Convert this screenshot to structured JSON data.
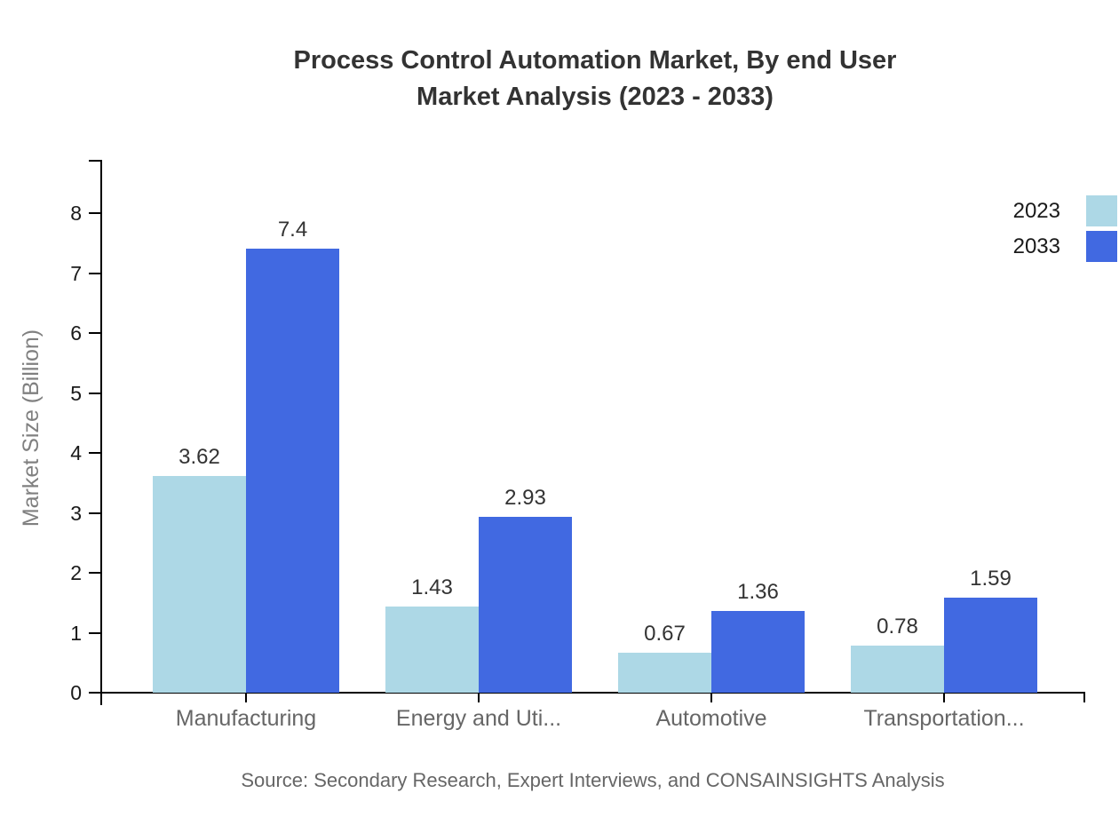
{
  "chart_data": {
    "type": "bar",
    "title": "Process Control Automation Market, By end User Market Analysis (2023 - 2033)",
    "title_lines": [
      "Process Control Automation Market, By end User",
      "Market Analysis (2023 - 2033)"
    ],
    "ylabel": "Market Size (Billion)",
    "xlabel": "",
    "categories": [
      "Manufacturing",
      "Energy and Uti...",
      "Automotive",
      "Transportation..."
    ],
    "series": [
      {
        "name": "2023",
        "color": "#ADD8E6",
        "values": [
          3.62,
          1.43,
          0.67,
          0.78
        ],
        "labels": [
          "3.62",
          "1.43",
          "0.67",
          "0.78"
        ]
      },
      {
        "name": "2033",
        "color": "#4169E1",
        "values": [
          7.4,
          2.93,
          1.36,
          1.59
        ],
        "labels": [
          "7.4",
          "2.93",
          "1.36",
          "1.59"
        ]
      }
    ],
    "yticks": [
      0,
      1,
      2,
      3,
      4,
      5,
      6,
      7,
      8
    ],
    "ylim": [
      0,
      8.9
    ],
    "grid": false,
    "legend_position": "top-right",
    "source": "Source: Secondary Research, Expert Interviews, and CONSAINSIGHTS Analysis"
  },
  "colors": {
    "axis": "#000000",
    "title_text": "#333333",
    "tick_text": "#1a1a1a",
    "category_text": "#666666",
    "value_text": "#333333",
    "ylabel_text": "#808080",
    "source_text": "#666666",
    "background": "#ffffff"
  }
}
